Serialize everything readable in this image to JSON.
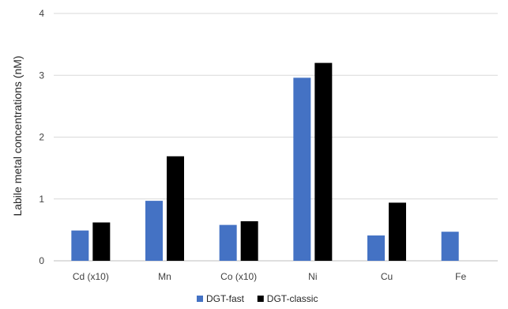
{
  "chart_data": {
    "type": "bar",
    "title": "",
    "xlabel": "",
    "ylabel": "Labile metal concentrations (nM)",
    "ylim": [
      0,
      4
    ],
    "yticks": [
      0,
      1,
      2,
      3,
      4
    ],
    "grid": true,
    "legend_position": "bottom",
    "categories": [
      "Cd (x10)",
      "Mn",
      "Co (x10)",
      "Ni",
      "Cu",
      "Fe"
    ],
    "series": [
      {
        "name": "DGT-fast",
        "color": "#4472C4",
        "values": [
          0.49,
          0.97,
          0.58,
          2.96,
          0.41,
          0.47
        ]
      },
      {
        "name": "DGT-classic",
        "color": "#000000",
        "values": [
          0.62,
          1.69,
          0.64,
          3.2,
          0.94,
          null
        ]
      }
    ]
  }
}
